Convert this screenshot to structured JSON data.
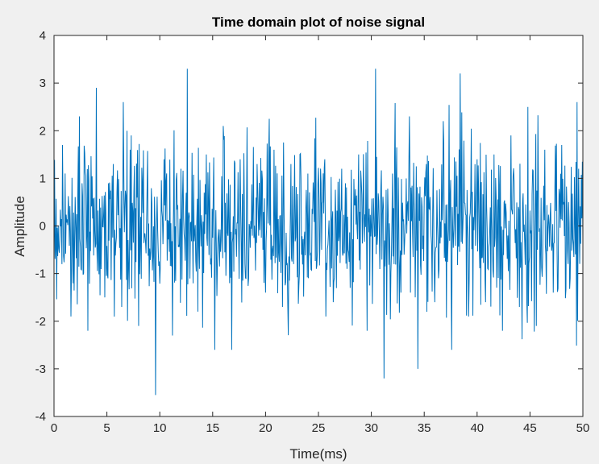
{
  "chart_data": {
    "type": "line",
    "title": "Time domain plot of noise signal",
    "xlabel": "Time(ms)",
    "ylabel": "Amplitude",
    "xlim": [
      0,
      50
    ],
    "ylim": [
      -4,
      4
    ],
    "xticks": [
      0,
      5,
      10,
      15,
      20,
      25,
      30,
      35,
      40,
      45,
      50
    ],
    "yticks": [
      -4,
      -3,
      -2,
      -1,
      0,
      1,
      2,
      3,
      4
    ],
    "grid": false,
    "series": [
      {
        "color": "#0072BD",
        "x": [
          0.0,
          0.8,
          1.6,
          2.4,
          3.2,
          4.0,
          4.8,
          5.6,
          6.4,
          7.2,
          8.0,
          8.8,
          9.6,
          10.4,
          11.2,
          12.0,
          12.6,
          13.6,
          14.4,
          15.2,
          16.0,
          16.6,
          17.6,
          18.4,
          19.2,
          20.0,
          20.8,
          21.6,
          22.4,
          23.2,
          24.0,
          24.8,
          25.6,
          26.4,
          27.2,
          28.0,
          28.8,
          29.6,
          30.4,
          31.2,
          32.0,
          32.8,
          33.6,
          34.4,
          35.2,
          36.0,
          36.8,
          37.6,
          38.4,
          39.2,
          40.0,
          40.8,
          41.6,
          42.4,
          43.2,
          44.0,
          44.8,
          45.6,
          46.4,
          47.2,
          48.0,
          48.8,
          49.6,
          50.0
        ],
        "y": [
          -0.7,
          1.7,
          -1.9,
          2.3,
          -2.2,
          2.9,
          -1.5,
          1.3,
          -1.7,
          1.6,
          -2.1,
          0.8,
          -3.55,
          1.4,
          -2.3,
          1.2,
          3.3,
          -1.8,
          1.5,
          -2.6,
          2.1,
          -1.2,
          1.4,
          -1.1,
          1.3,
          -1.4,
          1.6,
          -1.7,
          1.3,
          -1.0,
          1.1,
          -0.9,
          1.4,
          -1.6,
          1.2,
          -1.3,
          1.5,
          -2.2,
          3.3,
          -3.2,
          1.1,
          -1.4,
          2.3,
          -3.0,
          1.3,
          -1.6,
          2.2,
          -2.6,
          3.2,
          -1.9,
          1.4,
          -1.6,
          1.5,
          -2.2,
          1.9,
          -1.7,
          2.5,
          -2.1,
          1.6,
          -1.4,
          1.7,
          -1.1,
          1.2,
          -0.3
        ]
      }
    ]
  }
}
